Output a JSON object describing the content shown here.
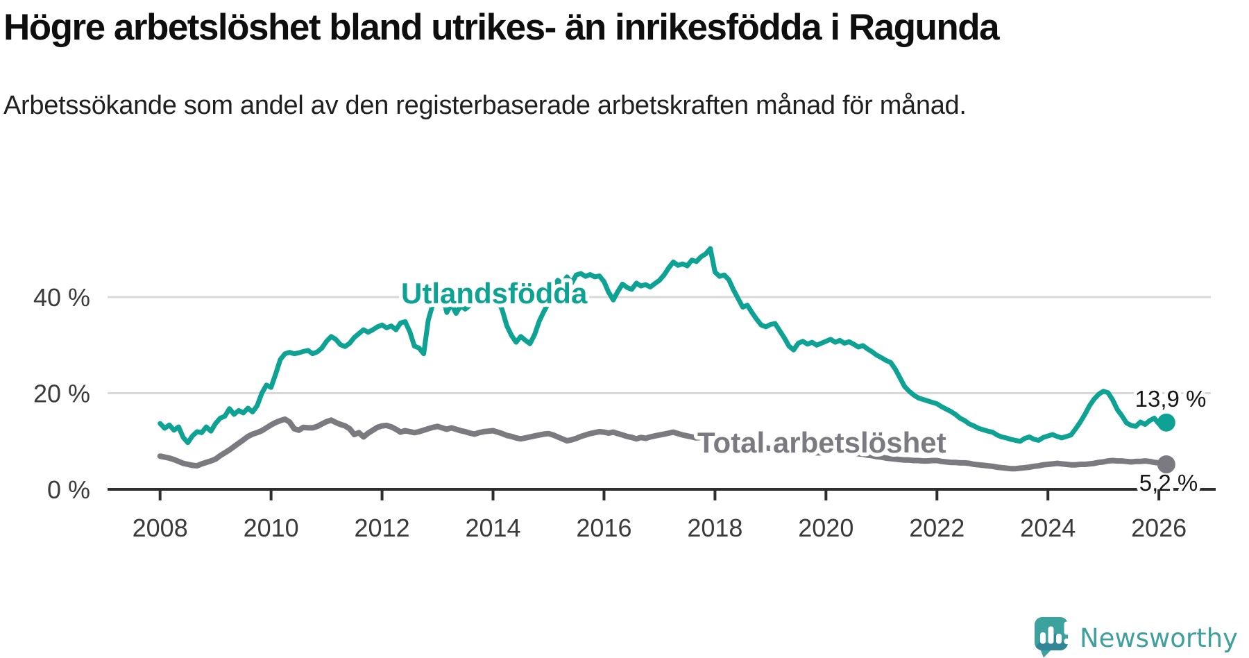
{
  "header": {
    "title": "Högre arbetslöshet bland utrikes- än inrikesfödda i Ragunda",
    "subtitle": "Arbetssökande som andel av den registerbaserade arbetskraften månad för månad."
  },
  "chart_data": {
    "type": "line",
    "title": "Högre arbetslöshet bland utrikes- än inrikesfödda i Ragunda",
    "xlabel": "",
    "ylabel": "",
    "grid": "horizontal",
    "legend_position": "inline-labels",
    "x_axis": {
      "ticks": [
        2008,
        2010,
        2012,
        2014,
        2016,
        2018,
        2020,
        2022,
        2024,
        2026
      ],
      "labels": [
        "2008",
        "2010",
        "2012",
        "2014",
        "2016",
        "2018",
        "2020",
        "2022",
        "2024",
        "2026"
      ],
      "min": 2007.1,
      "max": 2027.0
    },
    "y_axis": {
      "ticks": [
        0,
        20,
        40
      ],
      "labels": [
        "0 %",
        "20 %",
        "40 %"
      ],
      "min": 0,
      "max": 52
    },
    "series": [
      {
        "name": "Utlandsfödda",
        "color": "#0EA294",
        "end_label": "13,9 %",
        "end_value": 13.9,
        "start_year": 2008,
        "freq": "monthly",
        "values": [
          13.7,
          12.7,
          13.4,
          12.3,
          13.0,
          10.8,
          9.7,
          11.1,
          12.0,
          11.8,
          13.0,
          12.1,
          13.7,
          14.8,
          15.2,
          16.8,
          15.6,
          16.4,
          15.9,
          16.9,
          16.1,
          17.4,
          20.0,
          21.7,
          21.2,
          24.0,
          27.0,
          28.2,
          28.5,
          28.2,
          28.4,
          28.7,
          28.9,
          28.2,
          28.6,
          29.4,
          30.8,
          31.8,
          31.2,
          30.1,
          29.7,
          30.4,
          31.6,
          32.4,
          33.2,
          32.7,
          33.2,
          33.8,
          34.2,
          33.6,
          34.0,
          33.2,
          34.6,
          34.9,
          32.8,
          29.8,
          29.4,
          28.2,
          35.2,
          38.6,
          40.3,
          40.6,
          36.8,
          38.6,
          36.6,
          38.2,
          37.5,
          38.3,
          39.6,
          40.2,
          39.8,
          40.4,
          39.9,
          39.4,
          37.3,
          34.0,
          32.0,
          30.6,
          31.8,
          31.0,
          30.3,
          32.2,
          35.0,
          37.0,
          38.8,
          41.5,
          43.5,
          42.6,
          44.2,
          42.9,
          44.6,
          44.9,
          44.3,
          44.7,
          44.2,
          44.4,
          43.2,
          41.0,
          39.4,
          41.2,
          42.7,
          42.0,
          41.6,
          42.9,
          42.3,
          42.6,
          42.1,
          42.8,
          43.5,
          44.6,
          46.1,
          47.3,
          46.6,
          46.9,
          46.5,
          47.7,
          47.4,
          48.4,
          49.0,
          50.1,
          45.2,
          44.3,
          44.6,
          43.6,
          41.5,
          39.7,
          37.9,
          38.3,
          36.8,
          35.4,
          34.2,
          33.8,
          34.3,
          34.5,
          33.0,
          31.5,
          29.8,
          29.0,
          30.4,
          30.8,
          30.2,
          30.6,
          30.0,
          30.4,
          30.8,
          31.2,
          30.6,
          31.0,
          30.4,
          30.7,
          30.2,
          29.6,
          29.9,
          29.2,
          28.6,
          27.9,
          27.4,
          26.8,
          26.4,
          25.0,
          23.2,
          21.4,
          20.4,
          19.6,
          19.0,
          18.7,
          18.4,
          18.1,
          17.8,
          17.2,
          16.7,
          16.2,
          15.6,
          14.8,
          14.3,
          13.6,
          13.2,
          12.7,
          12.4,
          12.1,
          11.9,
          11.3,
          10.9,
          10.7,
          10.4,
          10.2,
          10.0,
          10.6,
          10.9,
          10.4,
          10.2,
          10.8,
          11.1,
          11.4,
          11.0,
          10.7,
          11.0,
          11.3,
          12.6,
          14.0,
          15.6,
          17.4,
          18.8,
          19.8,
          20.4,
          20.1,
          18.6,
          16.6,
          15.3,
          13.8,
          13.3,
          13.1,
          14.0,
          13.5,
          14.3,
          14.8,
          13.6,
          13.9
        ]
      },
      {
        "name": "Total arbetslöshet",
        "color": "#7A7A80",
        "end_label": "5,2 %",
        "end_value": 5.2,
        "start_year": 2008,
        "freq": "monthly",
        "values": [
          6.9,
          6.7,
          6.5,
          6.2,
          5.8,
          5.4,
          5.2,
          5.0,
          4.9,
          5.3,
          5.6,
          5.9,
          6.3,
          7.0,
          7.6,
          8.2,
          8.9,
          9.6,
          10.3,
          11.0,
          11.5,
          11.8,
          12.2,
          12.8,
          13.4,
          13.9,
          14.3,
          14.6,
          14.0,
          12.6,
          12.3,
          12.9,
          12.8,
          12.8,
          13.1,
          13.6,
          14.1,
          14.4,
          13.9,
          13.5,
          13.2,
          12.6,
          11.4,
          11.8,
          10.9,
          11.7,
          12.3,
          12.9,
          13.2,
          13.3,
          13.0,
          12.5,
          11.9,
          12.2,
          12.0,
          11.8,
          12.0,
          12.3,
          12.6,
          12.9,
          13.1,
          12.8,
          12.5,
          12.8,
          12.5,
          12.2,
          12.0,
          11.7,
          11.5,
          11.8,
          12.0,
          12.1,
          12.2,
          11.9,
          11.6,
          11.2,
          11.0,
          10.7,
          10.5,
          10.7,
          10.9,
          11.1,
          11.3,
          11.5,
          11.6,
          11.3,
          10.9,
          10.5,
          10.1,
          10.3,
          10.6,
          11.0,
          11.3,
          11.6,
          11.8,
          12.0,
          11.9,
          11.7,
          11.9,
          11.6,
          11.3,
          11.0,
          10.8,
          10.5,
          10.8,
          10.6,
          10.9,
          11.1,
          11.3,
          11.5,
          11.7,
          11.9,
          11.6,
          11.3,
          11.1,
          10.9,
          10.7,
          10.8,
          10.6,
          10.4,
          10.2,
          10.0,
          9.8,
          9.6,
          9.4,
          9.2,
          9.1,
          9.0,
          8.9,
          8.8,
          8.7,
          8.6,
          8.5,
          8.4,
          8.3,
          8.2,
          8.1,
          8.0,
          7.9,
          7.8,
          7.7,
          7.6,
          7.6,
          7.6,
          7.7,
          7.8,
          7.9,
          7.9,
          7.8,
          7.7,
          7.6,
          7.4,
          7.3,
          7.1,
          7.0,
          6.8,
          6.7,
          6.5,
          6.4,
          6.3,
          6.2,
          6.1,
          6.1,
          6.0,
          6.0,
          5.9,
          5.9,
          6.0,
          6.0,
          5.8,
          5.7,
          5.6,
          5.6,
          5.5,
          5.5,
          5.4,
          5.2,
          5.1,
          5.0,
          4.9,
          4.8,
          4.6,
          4.5,
          4.4,
          4.3,
          4.3,
          4.4,
          4.5,
          4.6,
          4.8,
          4.9,
          5.1,
          5.2,
          5.3,
          5.4,
          5.3,
          5.2,
          5.1,
          5.1,
          5.2,
          5.2,
          5.3,
          5.4,
          5.6,
          5.7,
          5.9,
          6.0,
          5.9,
          5.9,
          5.8,
          5.7,
          5.8,
          5.8,
          5.9,
          5.8,
          5.6,
          5.5,
          5.2
        ]
      }
    ],
    "colors": {
      "grid": "#D9D9D9",
      "axis": "#2E2E2E",
      "tick_label": "#3A3A3A",
      "end_label": "#161616"
    }
  },
  "logo": {
    "text": "Newsworthy",
    "icon": "newsworthy-speech-bubble-barchart-icon",
    "color": "#3FA09D"
  }
}
